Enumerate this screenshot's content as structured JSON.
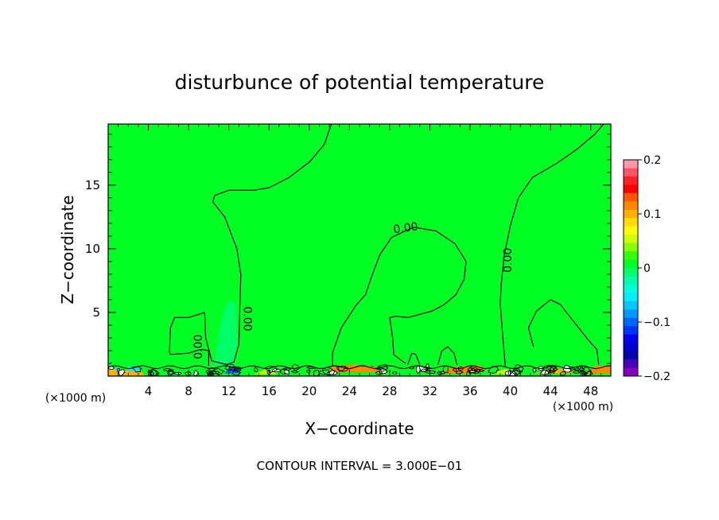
{
  "chart_data": {
    "type": "contour",
    "title": "disturbunce of potential temperature",
    "xlabel": "X−coordinate",
    "ylabel": "Z−coordinate",
    "x_unit_left": "(×1000 m)",
    "x_unit_right": "(×1000 m)",
    "footer": "CONTOUR INTERVAL = 3.000E−01",
    "xlim": [
      0,
      50
    ],
    "ylim": [
      0,
      19.8
    ],
    "x_ticks": [
      4,
      8,
      12,
      16,
      20,
      24,
      28,
      32,
      36,
      40,
      44,
      48
    ],
    "x_tick_labels": [
      "4",
      "8",
      "12",
      "16",
      "20",
      "24",
      "28",
      "32",
      "36",
      "40",
      "44",
      "48"
    ],
    "y_ticks": [
      5,
      10,
      15
    ],
    "y_tick_labels": [
      "5",
      "10",
      "15"
    ],
    "field_background_value": 0.0,
    "colorbar": {
      "range": [
        -0.2,
        0.2
      ],
      "tick_values": [
        0.2,
        0.1,
        0,
        -0.1,
        -0.2
      ],
      "tick_labels": [
        "0.2",
        "0.1",
        "0",
        "−0.1",
        "−0.2"
      ],
      "colors": [
        "#ff99aa",
        "#ff5566",
        "#ff2222",
        "#ff0000",
        "#ff5500",
        "#ff8800",
        "#ffb000",
        "#ffdd00",
        "#ffff00",
        "#ccff00",
        "#88ff00",
        "#33ff00",
        "#00ff22",
        "#00ff66",
        "#00ffaa",
        "#00ffdd",
        "#00eeff",
        "#00c8ff",
        "#0099ff",
        "#0066ff",
        "#0033ff",
        "#0000ee",
        "#0000cc",
        "#0000aa",
        "#4400bb",
        "#8800bb"
      ]
    },
    "contour_labels": [
      {
        "text": "0.00",
        "x": 9.0,
        "y": 2.3,
        "angle": -90
      },
      {
        "text": "0.00",
        "x": 13.8,
        "y": 4.5,
        "angle": 90
      },
      {
        "text": "0.00",
        "x": 29.6,
        "y": 11.6,
        "angle": -8
      },
      {
        "text": "0.00",
        "x": 39.8,
        "y": 9.1,
        "angle": -90
      }
    ],
    "contour_lines": [
      {
        "value": 0.0,
        "points": [
          [
            10,
            0.8
          ],
          [
            10,
            2.0
          ],
          [
            9.2,
            2.1
          ],
          [
            8.0,
            1.8
          ],
          [
            6.2,
            1.7
          ],
          [
            6.1,
            1.9
          ],
          [
            6.2,
            3.8
          ],
          [
            6.6,
            4.6
          ],
          [
            8.0,
            4.6
          ],
          [
            9.2,
            4.9
          ],
          [
            9.6,
            5.0
          ],
          [
            9.7,
            3.0
          ],
          [
            10.3,
            1.2
          ],
          [
            11.8,
            0.9
          ],
          [
            12.5,
            1.1
          ],
          [
            13.0,
            2.5
          ],
          [
            13.2,
            8.0
          ],
          [
            12.8,
            10.0
          ],
          [
            11.6,
            12.5
          ],
          [
            10.4,
            13.7
          ],
          [
            10.6,
            14.2
          ],
          [
            12.0,
            14.6
          ],
          [
            14.5,
            14.6
          ],
          [
            16.0,
            14.8
          ],
          [
            18.0,
            15.6
          ],
          [
            20.0,
            16.8
          ],
          [
            21.5,
            18.2
          ],
          [
            22.2,
            19.8
          ]
        ]
      },
      {
        "value": 0.0,
        "points": [
          [
            22.3,
            0.8
          ],
          [
            22.3,
            1.8
          ],
          [
            23.2,
            3.8
          ],
          [
            24.6,
            5.5
          ],
          [
            25.6,
            6.4
          ],
          [
            26.2,
            7.8
          ],
          [
            27.0,
            9.5
          ],
          [
            28.2,
            10.9
          ],
          [
            30.4,
            11.7
          ],
          [
            32.6,
            11.4
          ],
          [
            34.5,
            10.4
          ],
          [
            35.6,
            9.0
          ],
          [
            35.4,
            7.6
          ],
          [
            34.6,
            6.4
          ],
          [
            33.4,
            5.6
          ],
          [
            32.2,
            5.1
          ],
          [
            29.8,
            4.6
          ],
          [
            28.6,
            4.7
          ],
          [
            28.0,
            4.6
          ],
          [
            28.3,
            3.0
          ],
          [
            28.4,
            1.7
          ],
          [
            29.2,
            1.2
          ],
          [
            29.6,
            1.0
          ]
        ]
      },
      {
        "value": 0.0,
        "points": [
          [
            29.8,
            0.9
          ],
          [
            30.2,
            1.8
          ],
          [
            30.6,
            1.7
          ],
          [
            31.0,
            0.9
          ]
        ]
      },
      {
        "value": 0.0,
        "points": [
          [
            32.8,
            0.9
          ],
          [
            33.2,
            2.0
          ],
          [
            33.8,
            2.3
          ],
          [
            34.4,
            1.8
          ],
          [
            34.7,
            0.9
          ]
        ]
      },
      {
        "value": 0.0,
        "points": [
          [
            39.5,
            0.8
          ],
          [
            39.2,
            3.6
          ],
          [
            39.0,
            5.7
          ],
          [
            39.1,
            7.2
          ],
          [
            39.4,
            9.5
          ],
          [
            40.0,
            11.8
          ],
          [
            40.8,
            14.0
          ],
          [
            42.2,
            15.6
          ],
          [
            44.6,
            16.7
          ],
          [
            46.6,
            17.8
          ],
          [
            48.4,
            19.0
          ],
          [
            49.3,
            19.8
          ]
        ]
      },
      {
        "value": 0.0,
        "points": [
          [
            42.3,
            2.3
          ],
          [
            41.8,
            3.8
          ],
          [
            42.6,
            5.1
          ],
          [
            44.0,
            6.0
          ],
          [
            45.0,
            5.6
          ],
          [
            46.3,
            4.3
          ],
          [
            47.7,
            2.9
          ],
          [
            48.6,
            2.1
          ],
          [
            48.8,
            0.9
          ]
        ]
      }
    ],
    "shaded_regions": [
      {
        "value": -0.05,
        "color": "#00ff66",
        "points": [
          [
            10.5,
            0.8
          ],
          [
            11.0,
            3.5
          ],
          [
            11.7,
            5.5
          ],
          [
            12.2,
            6.0
          ],
          [
            12.7,
            5.6
          ],
          [
            12.8,
            2.5
          ],
          [
            12.5,
            0.8
          ]
        ]
      },
      {
        "value": -0.12,
        "color": "#00eeff",
        "points": [
          [
            0.3,
            0.2
          ],
          [
            0.6,
            0.7
          ],
          [
            1.2,
            0.5
          ],
          [
            1.0,
            0.2
          ]
        ]
      },
      {
        "value": -0.12,
        "color": "#00eeff",
        "points": [
          [
            1.6,
            0.1
          ],
          [
            2.0,
            0.8
          ],
          [
            3.2,
            0.6
          ],
          [
            3.0,
            0.1
          ]
        ]
      },
      {
        "value": -0.15,
        "color": "#0066ff",
        "points": [
          [
            11.6,
            0.2
          ],
          [
            12.0,
            0.7
          ],
          [
            13.2,
            0.6
          ],
          [
            13.0,
            0.2
          ]
        ]
      },
      {
        "value": -0.18,
        "color": "#0000cc",
        "points": [
          [
            25.4,
            0.5
          ],
          [
            26.2,
            0.8
          ],
          [
            27.0,
            0.6
          ],
          [
            26.0,
            0.4
          ]
        ]
      },
      {
        "value": 0.1,
        "color": "#ffb000",
        "points": [
          [
            0,
            0
          ],
          [
            0,
            0.55
          ],
          [
            1.6,
            0.45
          ],
          [
            3.4,
            0.3
          ],
          [
            3.6,
            0.0
          ]
        ]
      },
      {
        "value": 0.12,
        "color": "#ff8800",
        "points": [
          [
            21.8,
            0.3
          ],
          [
            22.4,
            0.8
          ],
          [
            24.6,
            0.9
          ],
          [
            26.6,
            0.7
          ],
          [
            27.2,
            0.3
          ]
        ]
      },
      {
        "value": 0.12,
        "color": "#ff8800",
        "points": [
          [
            33.0,
            0.2
          ],
          [
            34.2,
            0.7
          ],
          [
            37.0,
            0.85
          ],
          [
            37.6,
            0.4
          ],
          [
            36.0,
            0.2
          ]
        ]
      },
      {
        "value": 0.1,
        "color": "#ffb000",
        "points": [
          [
            42.4,
            0.2
          ],
          [
            44.0,
            0.6
          ],
          [
            46.4,
            0.5
          ],
          [
            46.0,
            0.2
          ]
        ]
      },
      {
        "value": 0.12,
        "color": "#ff8800",
        "points": [
          [
            47.5,
            0.2
          ],
          [
            48.4,
            0.8
          ],
          [
            50,
            0.85
          ],
          [
            50,
            0.2
          ]
        ]
      },
      {
        "value": 0.06,
        "color": "#ccff00",
        "points": [
          [
            14.4,
            0.15
          ],
          [
            15.6,
            0.5
          ],
          [
            17.0,
            0.4
          ],
          [
            16.6,
            0.15
          ]
        ]
      },
      {
        "value": 0.06,
        "color": "#ccff00",
        "points": [
          [
            38.0,
            0.15
          ],
          [
            39.4,
            0.55
          ],
          [
            41.0,
            0.4
          ],
          [
            40.4,
            0.15
          ]
        ]
      }
    ]
  }
}
